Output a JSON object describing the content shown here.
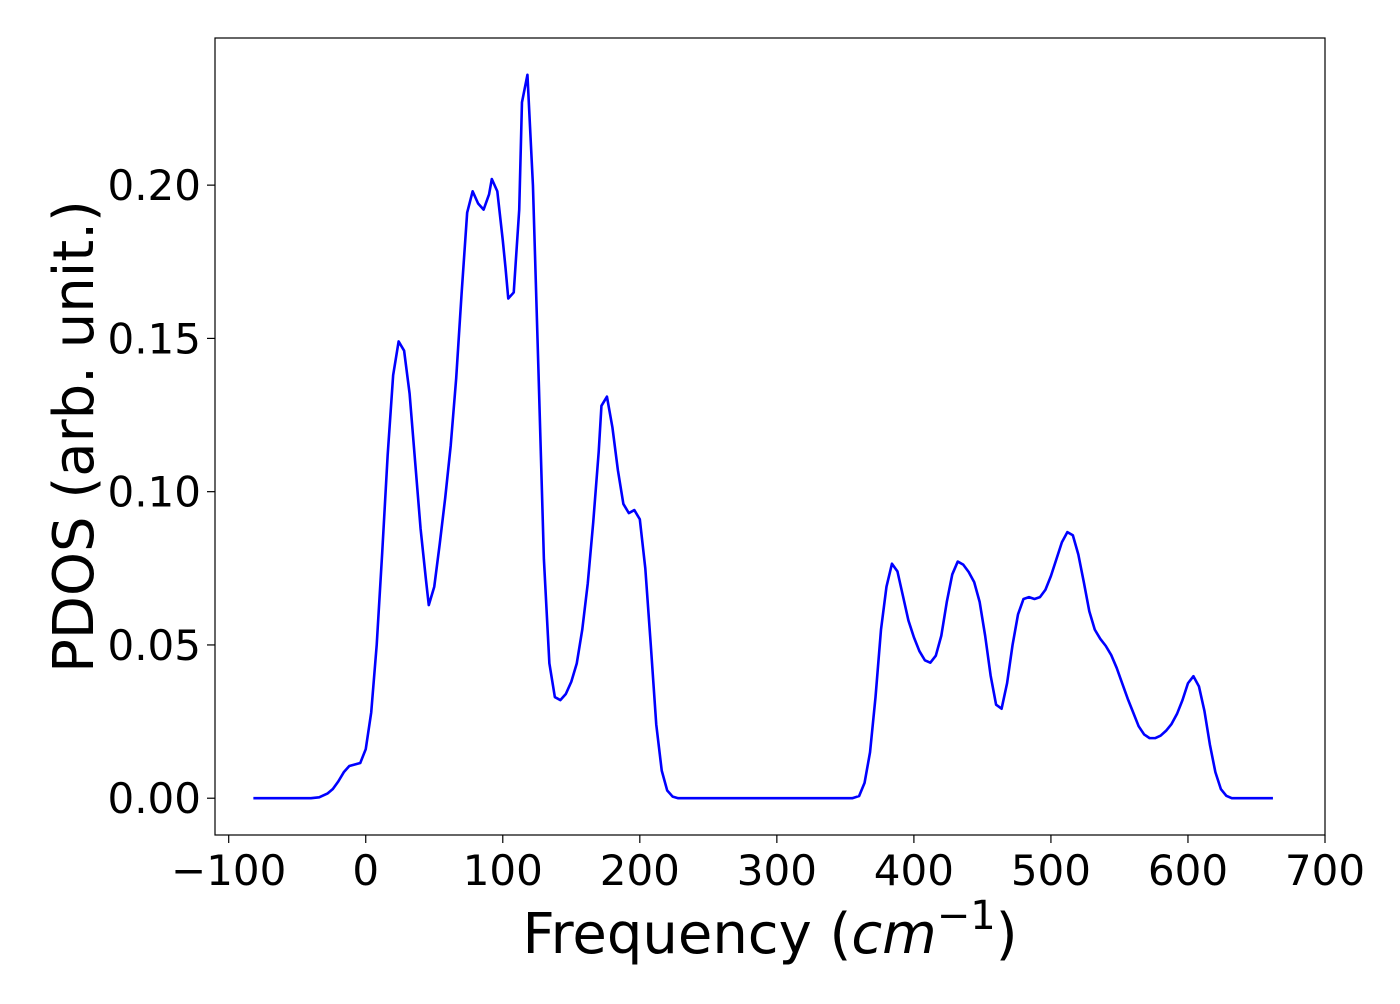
{
  "chart_data": {
    "type": "line",
    "title": "",
    "xlabel": {
      "text": "Frequency (",
      "unit_base": "cm",
      "unit_exponent": "−1",
      "suffix": ")"
    },
    "ylabel": "PDOS (arb. unit.)",
    "xlim": [
      -110,
      700
    ],
    "ylim": [
      -0.012,
      0.248
    ],
    "x_ticks": [
      -100,
      0,
      100,
      200,
      300,
      400,
      500,
      600,
      700
    ],
    "x_tick_labels": [
      "−100",
      "0",
      "100",
      "200",
      "300",
      "400",
      "500",
      "600",
      "700"
    ],
    "y_ticks": [
      0.0,
      0.05,
      0.1,
      0.15,
      0.2
    ],
    "y_tick_labels": [
      "0.00",
      "0.05",
      "0.10",
      "0.15",
      "0.20"
    ],
    "grid": false,
    "legend": null,
    "series": [
      {
        "color": "#0000ff",
        "points": [
          [
            -82,
            0.0
          ],
          [
            -40,
            0.0
          ],
          [
            -34,
            0.0003
          ],
          [
            -28,
            0.0015
          ],
          [
            -24,
            0.003
          ],
          [
            -20,
            0.0055
          ],
          [
            -16,
            0.0085
          ],
          [
            -12,
            0.0105
          ],
          [
            -8,
            0.011
          ],
          [
            -4,
            0.0115
          ],
          [
            0,
            0.016
          ],
          [
            4,
            0.028
          ],
          [
            8,
            0.05
          ],
          [
            12,
            0.08
          ],
          [
            16,
            0.112
          ],
          [
            20,
            0.138
          ],
          [
            24,
            0.149
          ],
          [
            28,
            0.146
          ],
          [
            32,
            0.132
          ],
          [
            36,
            0.11
          ],
          [
            40,
            0.088
          ],
          [
            44,
            0.071
          ],
          [
            46,
            0.063
          ],
          [
            50,
            0.069
          ],
          [
            54,
            0.083
          ],
          [
            58,
            0.098
          ],
          [
            62,
            0.115
          ],
          [
            66,
            0.137
          ],
          [
            70,
            0.165
          ],
          [
            72,
            0.178
          ],
          [
            74,
            0.191
          ],
          [
            78,
            0.198
          ],
          [
            82,
            0.194
          ],
          [
            86,
            0.192
          ],
          [
            90,
            0.197
          ],
          [
            92,
            0.202
          ],
          [
            96,
            0.198
          ],
          [
            100,
            0.182
          ],
          [
            102,
            0.173
          ],
          [
            104,
            0.163
          ],
          [
            108,
            0.165
          ],
          [
            112,
            0.192
          ],
          [
            114,
            0.227
          ],
          [
            118,
            0.236
          ],
          [
            122,
            0.2
          ],
          [
            126,
            0.14
          ],
          [
            130,
            0.078
          ],
          [
            134,
            0.044
          ],
          [
            138,
            0.033
          ],
          [
            142,
            0.032
          ],
          [
            146,
            0.034
          ],
          [
            150,
            0.038
          ],
          [
            154,
            0.044
          ],
          [
            158,
            0.055
          ],
          [
            162,
            0.07
          ],
          [
            166,
            0.09
          ],
          [
            170,
            0.113
          ],
          [
            172,
            0.128
          ],
          [
            176,
            0.131
          ],
          [
            180,
            0.121
          ],
          [
            184,
            0.107
          ],
          [
            188,
            0.096
          ],
          [
            192,
            0.093
          ],
          [
            196,
            0.094
          ],
          [
            200,
            0.091
          ],
          [
            204,
            0.075
          ],
          [
            208,
            0.05
          ],
          [
            212,
            0.024
          ],
          [
            216,
            0.009
          ],
          [
            220,
            0.0025
          ],
          [
            224,
            0.0005
          ],
          [
            228,
            0.0
          ],
          [
            355,
            0.0
          ],
          [
            360,
            0.0007
          ],
          [
            364,
            0.005
          ],
          [
            368,
            0.015
          ],
          [
            372,
            0.033
          ],
          [
            376,
            0.055
          ],
          [
            380,
            0.069
          ],
          [
            384,
            0.0765
          ],
          [
            388,
            0.074
          ],
          [
            392,
            0.066
          ],
          [
            396,
            0.058
          ],
          [
            400,
            0.0525
          ],
          [
            404,
            0.048
          ],
          [
            408,
            0.045
          ],
          [
            412,
            0.0442
          ],
          [
            416,
            0.0465
          ],
          [
            420,
            0.053
          ],
          [
            424,
            0.064
          ],
          [
            428,
            0.073
          ],
          [
            432,
            0.0772
          ],
          [
            436,
            0.0762
          ],
          [
            440,
            0.0738
          ],
          [
            444,
            0.0705
          ],
          [
            448,
            0.064
          ],
          [
            452,
            0.053
          ],
          [
            456,
            0.04
          ],
          [
            460,
            0.0305
          ],
          [
            464,
            0.0292
          ],
          [
            468,
            0.0375
          ],
          [
            472,
            0.05
          ],
          [
            476,
            0.06
          ],
          [
            480,
            0.065
          ],
          [
            484,
            0.0656
          ],
          [
            488,
            0.065
          ],
          [
            492,
            0.0656
          ],
          [
            496,
            0.068
          ],
          [
            500,
            0.0725
          ],
          [
            504,
            0.078
          ],
          [
            508,
            0.0835
          ],
          [
            512,
            0.0868
          ],
          [
            516,
            0.0858
          ],
          [
            520,
            0.0795
          ],
          [
            524,
            0.0705
          ],
          [
            528,
            0.061
          ],
          [
            532,
            0.055
          ],
          [
            536,
            0.052
          ],
          [
            540,
            0.0497
          ],
          [
            544,
            0.0467
          ],
          [
            548,
            0.0425
          ],
          [
            552,
            0.0375
          ],
          [
            556,
            0.0325
          ],
          [
            560,
            0.028
          ],
          [
            564,
            0.0235
          ],
          [
            568,
            0.0208
          ],
          [
            572,
            0.0196
          ],
          [
            576,
            0.0196
          ],
          [
            580,
            0.0204
          ],
          [
            584,
            0.022
          ],
          [
            588,
            0.0242
          ],
          [
            592,
            0.0275
          ],
          [
            596,
            0.032
          ],
          [
            600,
            0.0375
          ],
          [
            604,
            0.0398
          ],
          [
            608,
            0.0365
          ],
          [
            612,
            0.0285
          ],
          [
            616,
            0.0175
          ],
          [
            620,
            0.0085
          ],
          [
            624,
            0.003
          ],
          [
            628,
            0.0008
          ],
          [
            632,
            0.0
          ],
          [
            662,
            0.0
          ]
        ]
      }
    ]
  }
}
